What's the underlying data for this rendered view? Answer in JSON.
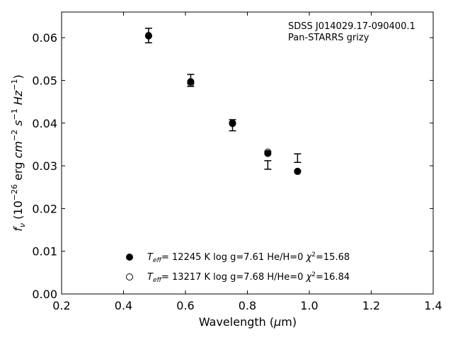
{
  "chart_data": {
    "type": "scatter",
    "xlabel": "Wavelength (μm)",
    "ylabel": "f_ν (10^-26 erg cm^-2 s^-1 Hz^-1)",
    "xlim": [
      0.2,
      1.4
    ],
    "ylim": [
      0.0,
      0.066
    ],
    "xticks": [
      "0.2",
      "0.4",
      "0.6",
      "0.8",
      "1.0",
      "1.2",
      "1.4"
    ],
    "yticks": [
      "0.00",
      "0.01",
      "0.02",
      "0.03",
      "0.04",
      "0.05",
      "0.06"
    ],
    "annotations": [
      "SDSS J014029.17-090400.1",
      "Pan-STARRS grizy"
    ],
    "legend_position": "lower-center",
    "observed": {
      "x": [
        0.481,
        0.617,
        0.752,
        0.866,
        0.962
      ],
      "y": [
        0.0605,
        0.05,
        0.0395,
        0.0302,
        0.0318
      ],
      "yerr": [
        0.0017,
        0.0014,
        0.0013,
        0.001,
        0.001
      ]
    },
    "series": [
      {
        "name": "T_eff= 12245 K  log g=7.61  He/H=0  χ²=15.68",
        "marker": "filled-circle",
        "x": [
          0.481,
          0.617,
          0.752,
          0.866,
          0.962
        ],
        "y": [
          0.0604,
          0.0497,
          0.0399,
          0.0329,
          0.0287
        ]
      },
      {
        "name": "T_eff= 13217 K  log g=7.68  H/He=0  χ²=16.84",
        "marker": "open-circle",
        "x": [
          0.481,
          0.617,
          0.752,
          0.866,
          0.962
        ],
        "y": [
          0.0605,
          0.0494,
          0.04,
          0.0332,
          0.0287
        ]
      }
    ]
  }
}
